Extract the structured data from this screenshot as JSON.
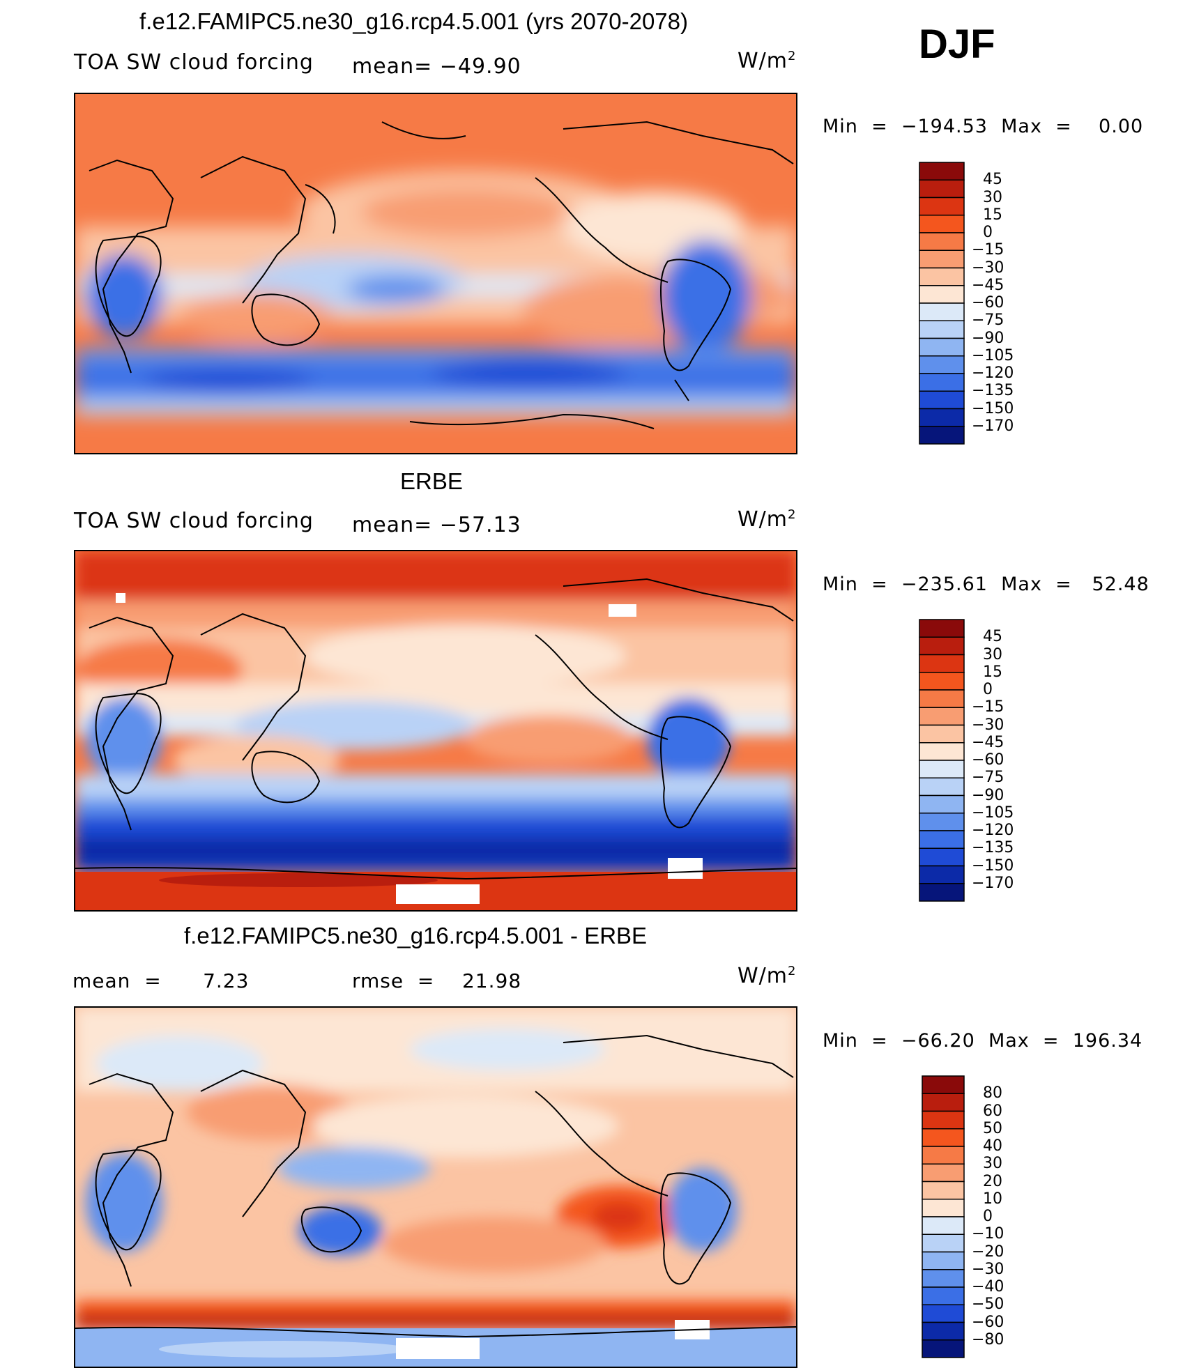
{
  "season": "DJF",
  "chart_data": [
    {
      "type": "heatmap",
      "title": "f.e12.FAMIPC5.ne30_g16.rcp4.5.001 (yrs 2070-2078)",
      "left_label": "TOA SW cloud forcing",
      "mean_text": "mean= −49.90",
      "units_text": "W/m",
      "units_exp": "2",
      "minmax_text": "Min  =  −194.53  Max  =    0.00",
      "levels": [
        "45",
        "30",
        "15",
        "0",
        "−15",
        "−30",
        "−45",
        "−60",
        "−75",
        "−90",
        "−105",
        "−120",
        "−135",
        "−150",
        "−170"
      ],
      "colors": [
        "#8a0a0a",
        "#b91e0e",
        "#dc3512",
        "#f4561e",
        "#f67a46",
        "#f89d72",
        "#fbc4a3",
        "#fde6d4",
        "#dce9f8",
        "#b9d2f6",
        "#8fb5f2",
        "#5f90ec",
        "#3b6fe6",
        "#1f4bd6",
        "#0c2aa8",
        "#06157a"
      ]
    },
    {
      "type": "heatmap",
      "title": "ERBE",
      "left_label": "TOA SW cloud forcing",
      "mean_text": "mean= −57.13",
      "units_text": "W/m",
      "units_exp": "2",
      "minmax_text": "Min  =  −235.61  Max  =   52.48",
      "levels": [
        "45",
        "30",
        "15",
        "0",
        "−15",
        "−30",
        "−45",
        "−60",
        "−75",
        "−90",
        "−105",
        "−120",
        "−135",
        "−150",
        "−170"
      ],
      "colors": [
        "#8a0a0a",
        "#b91e0e",
        "#dc3512",
        "#f4561e",
        "#f67a46",
        "#f89d72",
        "#fbc4a3",
        "#fde6d4",
        "#dce9f8",
        "#b9d2f6",
        "#8fb5f2",
        "#5f90ec",
        "#3b6fe6",
        "#1f4bd6",
        "#0c2aa8",
        "#06157a"
      ]
    },
    {
      "type": "heatmap",
      "title": "f.e12.FAMIPC5.ne30_g16.rcp4.5.001 - ERBE",
      "mean_text": "mean  =      7.23",
      "rmse_text": "rmse  =    21.98",
      "units_text": "W/m",
      "units_exp": "2",
      "minmax_text": "Min  =  −66.20  Max  =  196.34",
      "levels": [
        "80",
        "60",
        "50",
        "40",
        "30",
        "20",
        "10",
        "0",
        "−10",
        "−20",
        "−30",
        "−40",
        "−50",
        "−60",
        "−80"
      ],
      "colors": [
        "#8a0a0a",
        "#b91e0e",
        "#dc3512",
        "#f4561e",
        "#f67a46",
        "#f89d72",
        "#fbc4a3",
        "#fde6d4",
        "#dce9f8",
        "#b9d2f6",
        "#8fb5f2",
        "#5f90ec",
        "#3b6fe6",
        "#1f4bd6",
        "#0c2aa8",
        "#06157a"
      ]
    }
  ]
}
